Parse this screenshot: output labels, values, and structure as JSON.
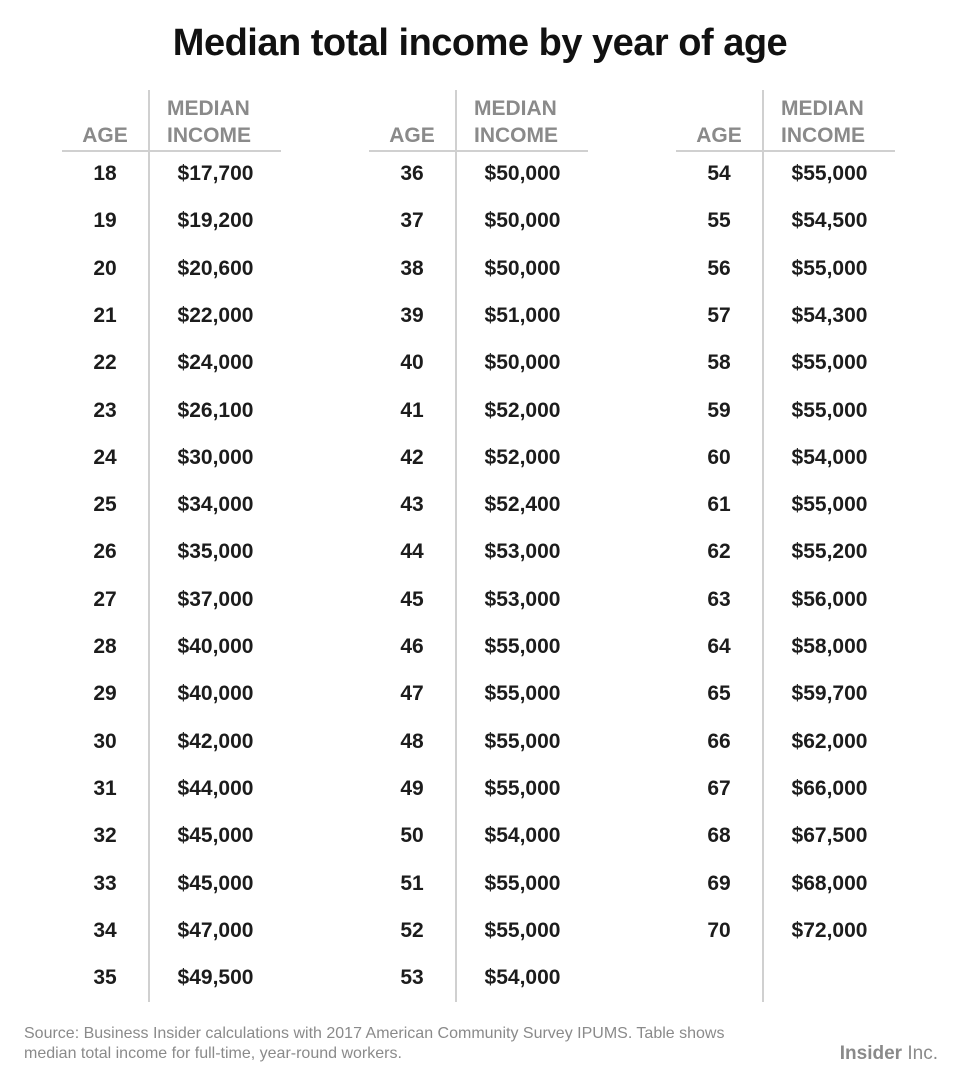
{
  "header": {
    "title": "Median total income by year of age"
  },
  "footer": {
    "source_line1": "Source: Business Insider calculations with 2017 American Community Survey IPUMS. Table shows",
    "source_line2": "median total income for full-time, year-round workers.",
    "logo_bold": "Insider",
    "logo_light": " Inc."
  },
  "chart_data": {
    "type": "table",
    "title": "Median total income by year of age",
    "columns": {
      "age": "AGE",
      "income_line1": "MEDIAN",
      "income_line2": "INCOME"
    },
    "rows": [
      {
        "age": "18",
        "income": "$17,700"
      },
      {
        "age": "19",
        "income": "$19,200"
      },
      {
        "age": "20",
        "income": "$20,600"
      },
      {
        "age": "21",
        "income": "$22,000"
      },
      {
        "age": "22",
        "income": "$24,000"
      },
      {
        "age": "23",
        "income": "$26,100"
      },
      {
        "age": "24",
        "income": "$30,000"
      },
      {
        "age": "25",
        "income": "$34,000"
      },
      {
        "age": "26",
        "income": "$35,000"
      },
      {
        "age": "27",
        "income": "$37,000"
      },
      {
        "age": "28",
        "income": "$40,000"
      },
      {
        "age": "29",
        "income": "$40,000"
      },
      {
        "age": "30",
        "income": "$42,000"
      },
      {
        "age": "31",
        "income": "$44,000"
      },
      {
        "age": "32",
        "income": "$45,000"
      },
      {
        "age": "33",
        "income": "$45,000"
      },
      {
        "age": "34",
        "income": "$47,000"
      },
      {
        "age": "35",
        "income": "$49,500"
      },
      {
        "age": "36",
        "income": "$50,000"
      },
      {
        "age": "37",
        "income": "$50,000"
      },
      {
        "age": "38",
        "income": "$50,000"
      },
      {
        "age": "39",
        "income": "$51,000"
      },
      {
        "age": "40",
        "income": "$50,000"
      },
      {
        "age": "41",
        "income": "$52,000"
      },
      {
        "age": "42",
        "income": "$52,000"
      },
      {
        "age": "43",
        "income": "$52,400"
      },
      {
        "age": "44",
        "income": "$53,000"
      },
      {
        "age": "45",
        "income": "$53,000"
      },
      {
        "age": "46",
        "income": "$55,000"
      },
      {
        "age": "47",
        "income": "$55,000"
      },
      {
        "age": "48",
        "income": "$55,000"
      },
      {
        "age": "49",
        "income": "$55,000"
      },
      {
        "age": "50",
        "income": "$54,000"
      },
      {
        "age": "51",
        "income": "$55,000"
      },
      {
        "age": "52",
        "income": "$55,000"
      },
      {
        "age": "53",
        "income": "$54,000"
      },
      {
        "age": "54",
        "income": "$55,000"
      },
      {
        "age": "55",
        "income": "$54,500"
      },
      {
        "age": "56",
        "income": "$55,000"
      },
      {
        "age": "57",
        "income": "$54,300"
      },
      {
        "age": "58",
        "income": "$55,000"
      },
      {
        "age": "59",
        "income": "$55,000"
      },
      {
        "age": "60",
        "income": "$54,000"
      },
      {
        "age": "61",
        "income": "$55,000"
      },
      {
        "age": "62",
        "income": "$55,200"
      },
      {
        "age": "63",
        "income": "$56,000"
      },
      {
        "age": "64",
        "income": "$58,000"
      },
      {
        "age": "65",
        "income": "$59,700"
      },
      {
        "age": "66",
        "income": "$62,000"
      },
      {
        "age": "67",
        "income": "$66,000"
      },
      {
        "age": "68",
        "income": "$67,500"
      },
      {
        "age": "69",
        "income": "$68,000"
      },
      {
        "age": "70",
        "income": "$72,000"
      }
    ]
  }
}
